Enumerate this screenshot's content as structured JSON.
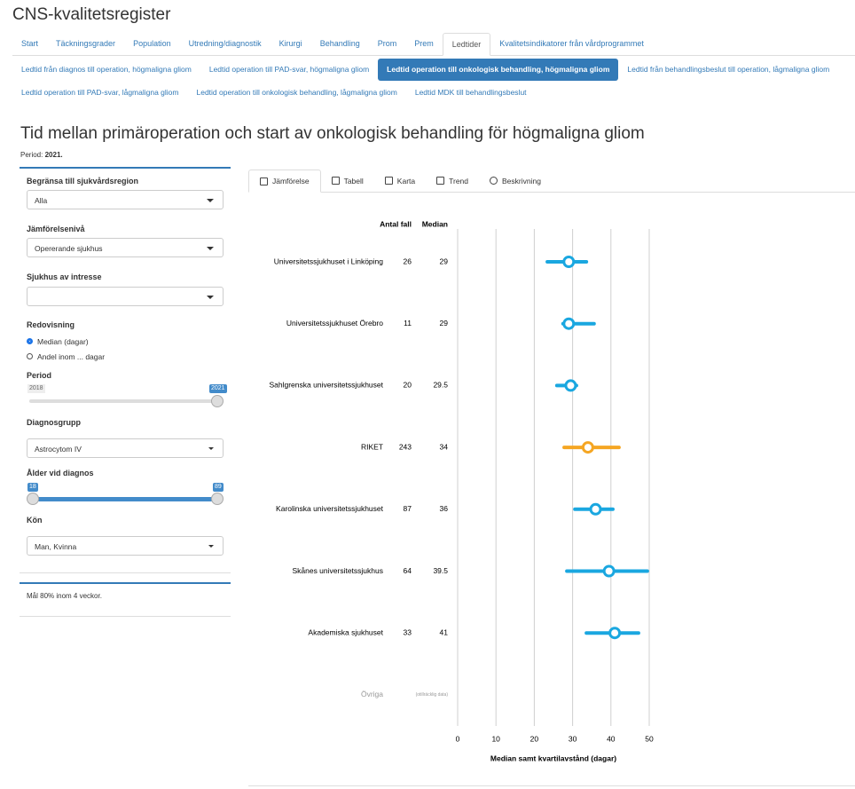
{
  "header": {
    "title": "CNS-kvalitetsregister"
  },
  "nav": {
    "tabs": [
      "Start",
      "Täckningsgrader",
      "Population",
      "Utredning/diagnostik",
      "Kirurgi",
      "Behandling",
      "Prom",
      "Prem",
      "Ledtider",
      "Kvalitetsindikatorer från vårdprogrammet"
    ],
    "active": 8
  },
  "subnav": {
    "rows": [
      [
        "Ledtid från diagnos till operation, högmaligna gliom",
        "Ledtid operation till PAD-svar, högmaligna gliom",
        "Ledtid operation till onkologisk behandling, högmaligna gliom",
        "Ledtid från behandlingsbeslut till operation, lågmaligna gliom"
      ],
      [
        "Ledtid operation till PAD-svar, lågmaligna gliom",
        "Ledtid operation till onkologisk behandling, lågmaligna gliom",
        "Ledtid MDK till behandlingsbeslut"
      ]
    ],
    "active_row": 0,
    "active_index": 2
  },
  "page": {
    "title": "Tid mellan primäroperation och start av onkologisk behandling för högmaligna gliom",
    "period_label": "Period:",
    "period_value": "2021."
  },
  "sidebar": {
    "region": {
      "label": "Begränsa till sjukvårdsregion",
      "value": "Alla"
    },
    "level": {
      "label": "Jämförelsenivå",
      "value": "Opererande sjukhus"
    },
    "hospital": {
      "label": "Sjukhus av intresse"
    },
    "display": {
      "label": "Redovisning",
      "options": [
        "Median (dagar)",
        "Andel inom ... dagar"
      ],
      "selected": 0
    },
    "period": {
      "label": "Period",
      "range": [
        2018,
        2021
      ]
    },
    "diagnosis": {
      "label": "Diagnosgrupp",
      "value": "Astrocytom IV"
    },
    "age": {
      "label": "Ålder vid diagnos",
      "range": [
        18,
        89
      ]
    },
    "sex": {
      "label": "Kön",
      "value": "Man, Kvinna"
    },
    "note": "Mål 80% inom 4 veckor."
  },
  "panel": {
    "tabs": [
      "Jämförelse",
      "Tabell",
      "Karta",
      "Trend",
      "Beskrivning"
    ],
    "active": 0
  },
  "chart_data": {
    "type": "dot-range",
    "columns": [
      "Antal fall",
      "Median"
    ],
    "categories": [
      "Universitetssjukhuset i Linköping",
      "Universitetssjukhuset Örebro",
      "Sahlgrenska universitetssjukhuset",
      "RIKET",
      "Karolinska universitetssjukhuset",
      "Skånes universitetssjukhus",
      "Akademiska sjukhuset"
    ],
    "n": [
      26,
      11,
      20,
      243,
      87,
      64,
      33
    ],
    "values": [
      29,
      29,
      29.5,
      34,
      36,
      39.5,
      41
    ],
    "low": [
      23.4,
      27.5,
      25.9,
      27.8,
      30.6,
      28.5,
      33.6
    ],
    "high": [
      33.6,
      35.6,
      31,
      42.1,
      40.5,
      49.5,
      47.2
    ],
    "colors": [
      "#1aa7e0",
      "#1aa7e0",
      "#1aa7e0",
      "#f5a623",
      "#1aa7e0",
      "#1aa7e0",
      "#1aa7e0"
    ],
    "other": {
      "name": "Övriga",
      "note": "(otillräcklig data)"
    },
    "xlim": [
      0,
      50
    ],
    "xticks": [
      0,
      10,
      20,
      30,
      40,
      50
    ],
    "xlabel": "Median samt kvartilavstånd (dagar)",
    "grid": true
  }
}
